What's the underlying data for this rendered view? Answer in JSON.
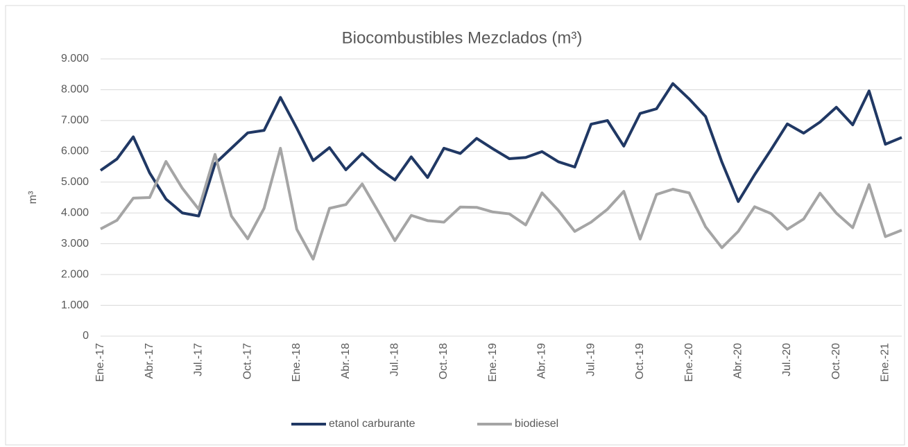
{
  "chart_data": {
    "type": "line",
    "title": "Biocombustibles Mezclados (m³)",
    "y_label": "m³",
    "categories": [
      "Ene.-17",
      null,
      null,
      "Abr.-17",
      null,
      null,
      "Jul.-17",
      null,
      null,
      "Oct.-17",
      null,
      null,
      "Ene.-18",
      null,
      null,
      "Abr.-18",
      null,
      null,
      "Jul.-18",
      null,
      null,
      "Oct.-18",
      null,
      null,
      "Ene.-19",
      null,
      null,
      "Abr.-19",
      null,
      null,
      "Jul.-19",
      null,
      null,
      "Oct.-19",
      null,
      null,
      "Ene.-20",
      null,
      null,
      "Abr.-20",
      null,
      null,
      "Jul.-20",
      null,
      null,
      "Oct.-20",
      null,
      null,
      "Ene.-21",
      null
    ],
    "series": [
      {
        "name": "etanol carburante",
        "color": "#203864",
        "values": [
          5380,
          5750,
          6470,
          5300,
          4450,
          4000,
          3900,
          5600,
          6100,
          6600,
          6680,
          7750,
          6750,
          5700,
          6120,
          5400,
          5930,
          5450,
          5070,
          5820,
          5150,
          6100,
          5930,
          6420,
          6080,
          5760,
          5800,
          5990,
          5660,
          5490,
          6880,
          7000,
          6170,
          7230,
          7380,
          8200,
          7700,
          7130,
          5650,
          4370,
          5240,
          6050,
          6890,
          6590,
          6950,
          7430,
          6860,
          7960,
          6230,
          6450
        ]
      },
      {
        "name": "biodiesel",
        "color": "#a5a5a5",
        "values": [
          3480,
          3760,
          4480,
          4500,
          5670,
          4800,
          4120,
          5900,
          3900,
          3160,
          4150,
          6100,
          3470,
          2500,
          4150,
          4270,
          4940,
          4030,
          3100,
          3920,
          3750,
          3700,
          4190,
          4180,
          4030,
          3970,
          3610,
          4650,
          4080,
          3400,
          3700,
          4120,
          4700,
          3150,
          4600,
          4770,
          4650,
          3550,
          2870,
          3400,
          4200,
          3980,
          3470,
          3800,
          4640,
          3990,
          3520,
          4920,
          3230,
          3440
        ]
      }
    ],
    "ylim": [
      0,
      9000
    ],
    "yticks": [
      0,
      {
        "value": 1000,
        "label": "1.000"
      },
      {
        "value": 2000,
        "label": "2.000"
      },
      {
        "value": 3000,
        "label": "3.000"
      },
      {
        "value": 4000,
        "label": "4.000"
      },
      {
        "value": 5000,
        "label": "5.000"
      },
      {
        "value": 6000,
        "label": "6.000"
      },
      {
        "value": 7000,
        "label": "7.000"
      },
      {
        "value": 8000,
        "label": "8.000"
      },
      {
        "value": 9000,
        "label": "9.000"
      }
    ],
    "grid": true,
    "legend": "bottom"
  }
}
